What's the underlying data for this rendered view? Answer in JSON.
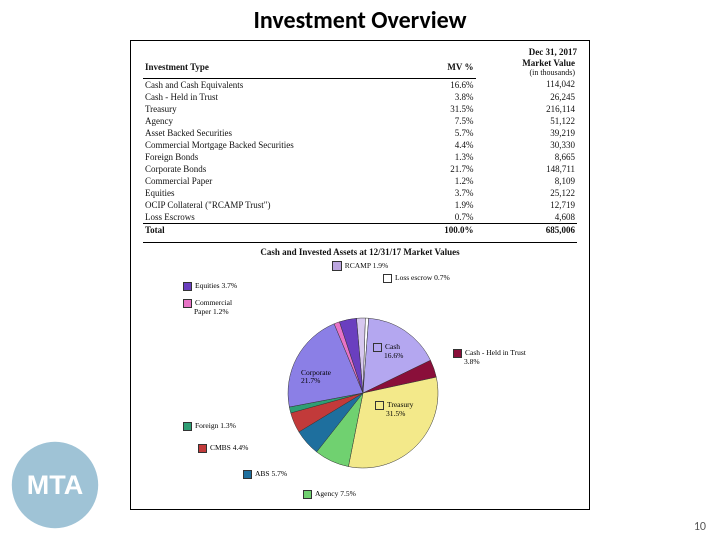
{
  "slide": {
    "title": "Investment Overview",
    "page_number": "10"
  },
  "table": {
    "as_of_date": "Dec 31, 2017",
    "value_header": "Market Value",
    "value_sub": "(in thousands)",
    "col_type": "Investment Type",
    "col_pct": "MV %",
    "rows": [
      {
        "label": "Cash and Cash Equivalents",
        "pct": "16.6%",
        "value": "114,042"
      },
      {
        "label": "Cash - Held in Trust",
        "pct": "3.8%",
        "value": "26,245"
      },
      {
        "label": "Treasury",
        "pct": "31.5%",
        "value": "216,114"
      },
      {
        "label": "Agency",
        "pct": "7.5%",
        "value": "51,122"
      },
      {
        "label": "Asset Backed Securities",
        "pct": "5.7%",
        "value": "39,219"
      },
      {
        "label": "Commercial Mortgage Backed Securities",
        "pct": "4.4%",
        "value": "30,330"
      },
      {
        "label": "Foreign Bonds",
        "pct": "1.3%",
        "value": "8,665"
      },
      {
        "label": "Corporate Bonds",
        "pct": "21.7%",
        "value": "148,711"
      },
      {
        "label": "Commercial Paper",
        "pct": "1.2%",
        "value": "8,109"
      },
      {
        "label": "Equities",
        "pct": "3.7%",
        "value": "25,122"
      },
      {
        "label": "OCIP Collateral (\"RCAMP Trust\")",
        "pct": "1.9%",
        "value": "12,719"
      },
      {
        "label": "Loss Escrows",
        "pct": "0.7%",
        "value": "4,608"
      }
    ],
    "total_label": "Total",
    "total_pct": "100.0%",
    "total_value": "685,006"
  },
  "chart": {
    "title": "Cash and Invested Assets at 12/31/17 Market Values",
    "top_legend": [
      {
        "label": "RCAMP 1.9%",
        "color": "#bca6e0"
      }
    ],
    "callouts": {
      "loss_escrow": "Loss escrow 0.7%",
      "equities": "Equities 3.7%",
      "commercial_paper_1": "Commercial",
      "commercial_paper_2": "Paper 1.2%",
      "cash1": "Cash",
      "cash2": "16.6%",
      "cash_trust_1": "Cash - Held in Trust",
      "cash_trust_2": "3.8%",
      "corporate_1": "Corporate",
      "corporate_2": "21.7%",
      "treasury_1": "Treasury",
      "treasury_2": "31.5%",
      "foreign": "Foreign 1.3%",
      "cmbs": "CMBS 4.4%",
      "abs": "ABS 5.7%",
      "agency": "Agency 7.5%"
    },
    "slices": [
      {
        "name": "rcamp",
        "value": 1.9,
        "color": "#d7c8ef"
      },
      {
        "name": "loss-escrow",
        "value": 0.7,
        "color": "#ffffff"
      },
      {
        "name": "cash",
        "value": 16.6,
        "color": "#b4a7f0"
      },
      {
        "name": "cash-trust",
        "value": 3.8,
        "color": "#8a0f3a"
      },
      {
        "name": "treasury",
        "value": 31.5,
        "color": "#f3e98a"
      },
      {
        "name": "agency",
        "value": 7.5,
        "color": "#70d170"
      },
      {
        "name": "abs",
        "value": 5.7,
        "color": "#1e6f9e"
      },
      {
        "name": "cmbs",
        "value": 4.4,
        "color": "#c23a3a"
      },
      {
        "name": "foreign",
        "value": 1.3,
        "color": "#2e9e74"
      },
      {
        "name": "corporate",
        "value": 21.7,
        "color": "#8b7fe6"
      },
      {
        "name": "commercial-paper",
        "value": 1.2,
        "color": "#e873c6"
      },
      {
        "name": "equities",
        "value": 3.7,
        "color": "#6a3fbf"
      }
    ],
    "colors": {
      "rcamp": "#d7c8ef",
      "loss_escrow": "#ffffff",
      "cash": "#b4a7f0",
      "cash_trust": "#8a0f3a",
      "treasury": "#f3e98a",
      "agency": "#70d170",
      "abs": "#1e6f9e",
      "cmbs": "#c23a3a",
      "foreign": "#2e9e74",
      "corporate": "#8b7fe6",
      "commercial_paper": "#e873c6",
      "equities": "#6a3fbf"
    }
  },
  "logo": {
    "text": "MTA",
    "circle_color": "#9fc3d6",
    "text_color": "#ffffff"
  }
}
